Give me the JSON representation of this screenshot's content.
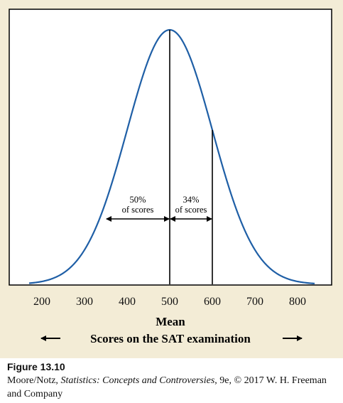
{
  "chart_data": {
    "type": "area",
    "title": "",
    "distribution": "normal",
    "mean": 500,
    "sd": 100,
    "x": [
      200,
      300,
      400,
      500,
      600,
      700,
      800
    ],
    "xlim": [
      170,
      840
    ],
    "tick_labels": [
      "200",
      "300",
      "400",
      "500",
      "600",
      "700",
      "800"
    ],
    "xlabel_primary": "Mean",
    "xlabel_secondary": "Scores on the SAT examination",
    "vlines": [
      500,
      600
    ],
    "annotations": [
      {
        "line1": "50%",
        "line2": "of scores",
        "from": 350,
        "to": 500
      },
      {
        "line1": "34%",
        "line2": "of scores",
        "from": 500,
        "to": 600
      }
    ],
    "curve_color": "#1f5fa6",
    "background_color": "#ffffff"
  },
  "caption": {
    "title": "Figure 13.10",
    "credit_authors": "Moore/Notz, ",
    "credit_book": "Statistics: Concepts and Controversies",
    "credit_rest": ", 9e, © 2017 W. H. Freeman and Company"
  }
}
